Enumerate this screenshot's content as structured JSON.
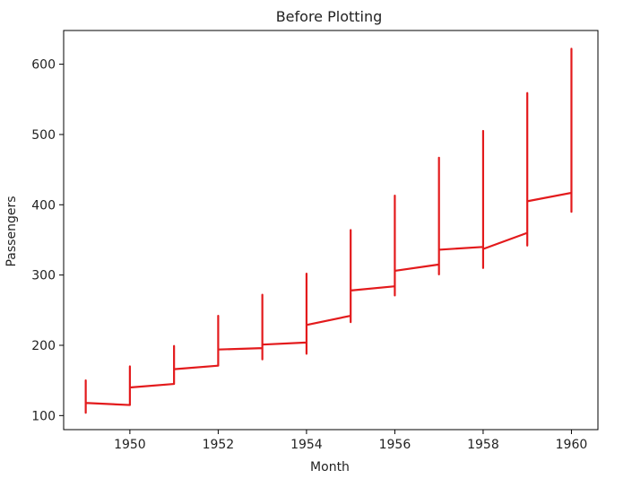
{
  "chart_data": {
    "type": "line",
    "title": "Before Plotting",
    "xlabel": "Month",
    "ylabel": "Passengers",
    "xlim": [
      1948.5,
      1960.6
    ],
    "ylim": [
      80,
      648
    ],
    "grid": false,
    "x_ticks": [
      1950,
      1952,
      1954,
      1956,
      1958,
      1960
    ],
    "y_ticks": [
      100,
      200,
      300,
      400,
      500,
      600
    ],
    "series": [
      {
        "color": "#e31a1c",
        "points": [
          [
            1949,
            150
          ],
          [
            1949,
            104
          ],
          [
            1949,
            118
          ],
          [
            1950,
            115
          ],
          [
            1950,
            170
          ],
          [
            1950,
            140
          ],
          [
            1951,
            145
          ],
          [
            1951,
            199
          ],
          [
            1951,
            166
          ],
          [
            1952,
            171
          ],
          [
            1952,
            242
          ],
          [
            1952,
            194
          ],
          [
            1953,
            196
          ],
          [
            1953,
            272
          ],
          [
            1953,
            180
          ],
          [
            1953,
            201
          ],
          [
            1954,
            204
          ],
          [
            1954,
            302
          ],
          [
            1954,
            188
          ],
          [
            1954,
            229
          ],
          [
            1955,
            242
          ],
          [
            1955,
            364
          ],
          [
            1955,
            233
          ],
          [
            1955,
            278
          ],
          [
            1956,
            284
          ],
          [
            1956,
            413
          ],
          [
            1956,
            271
          ],
          [
            1956,
            306
          ],
          [
            1957,
            315
          ],
          [
            1957,
            467
          ],
          [
            1957,
            301
          ],
          [
            1957,
            336
          ],
          [
            1958,
            340
          ],
          [
            1958,
            505
          ],
          [
            1958,
            310
          ],
          [
            1958,
            337
          ],
          [
            1959,
            360
          ],
          [
            1959,
            559
          ],
          [
            1959,
            342
          ],
          [
            1959,
            405
          ],
          [
            1960,
            417
          ],
          [
            1960,
            622
          ],
          [
            1960,
            390
          ],
          [
            1960,
            432
          ]
        ]
      }
    ]
  }
}
